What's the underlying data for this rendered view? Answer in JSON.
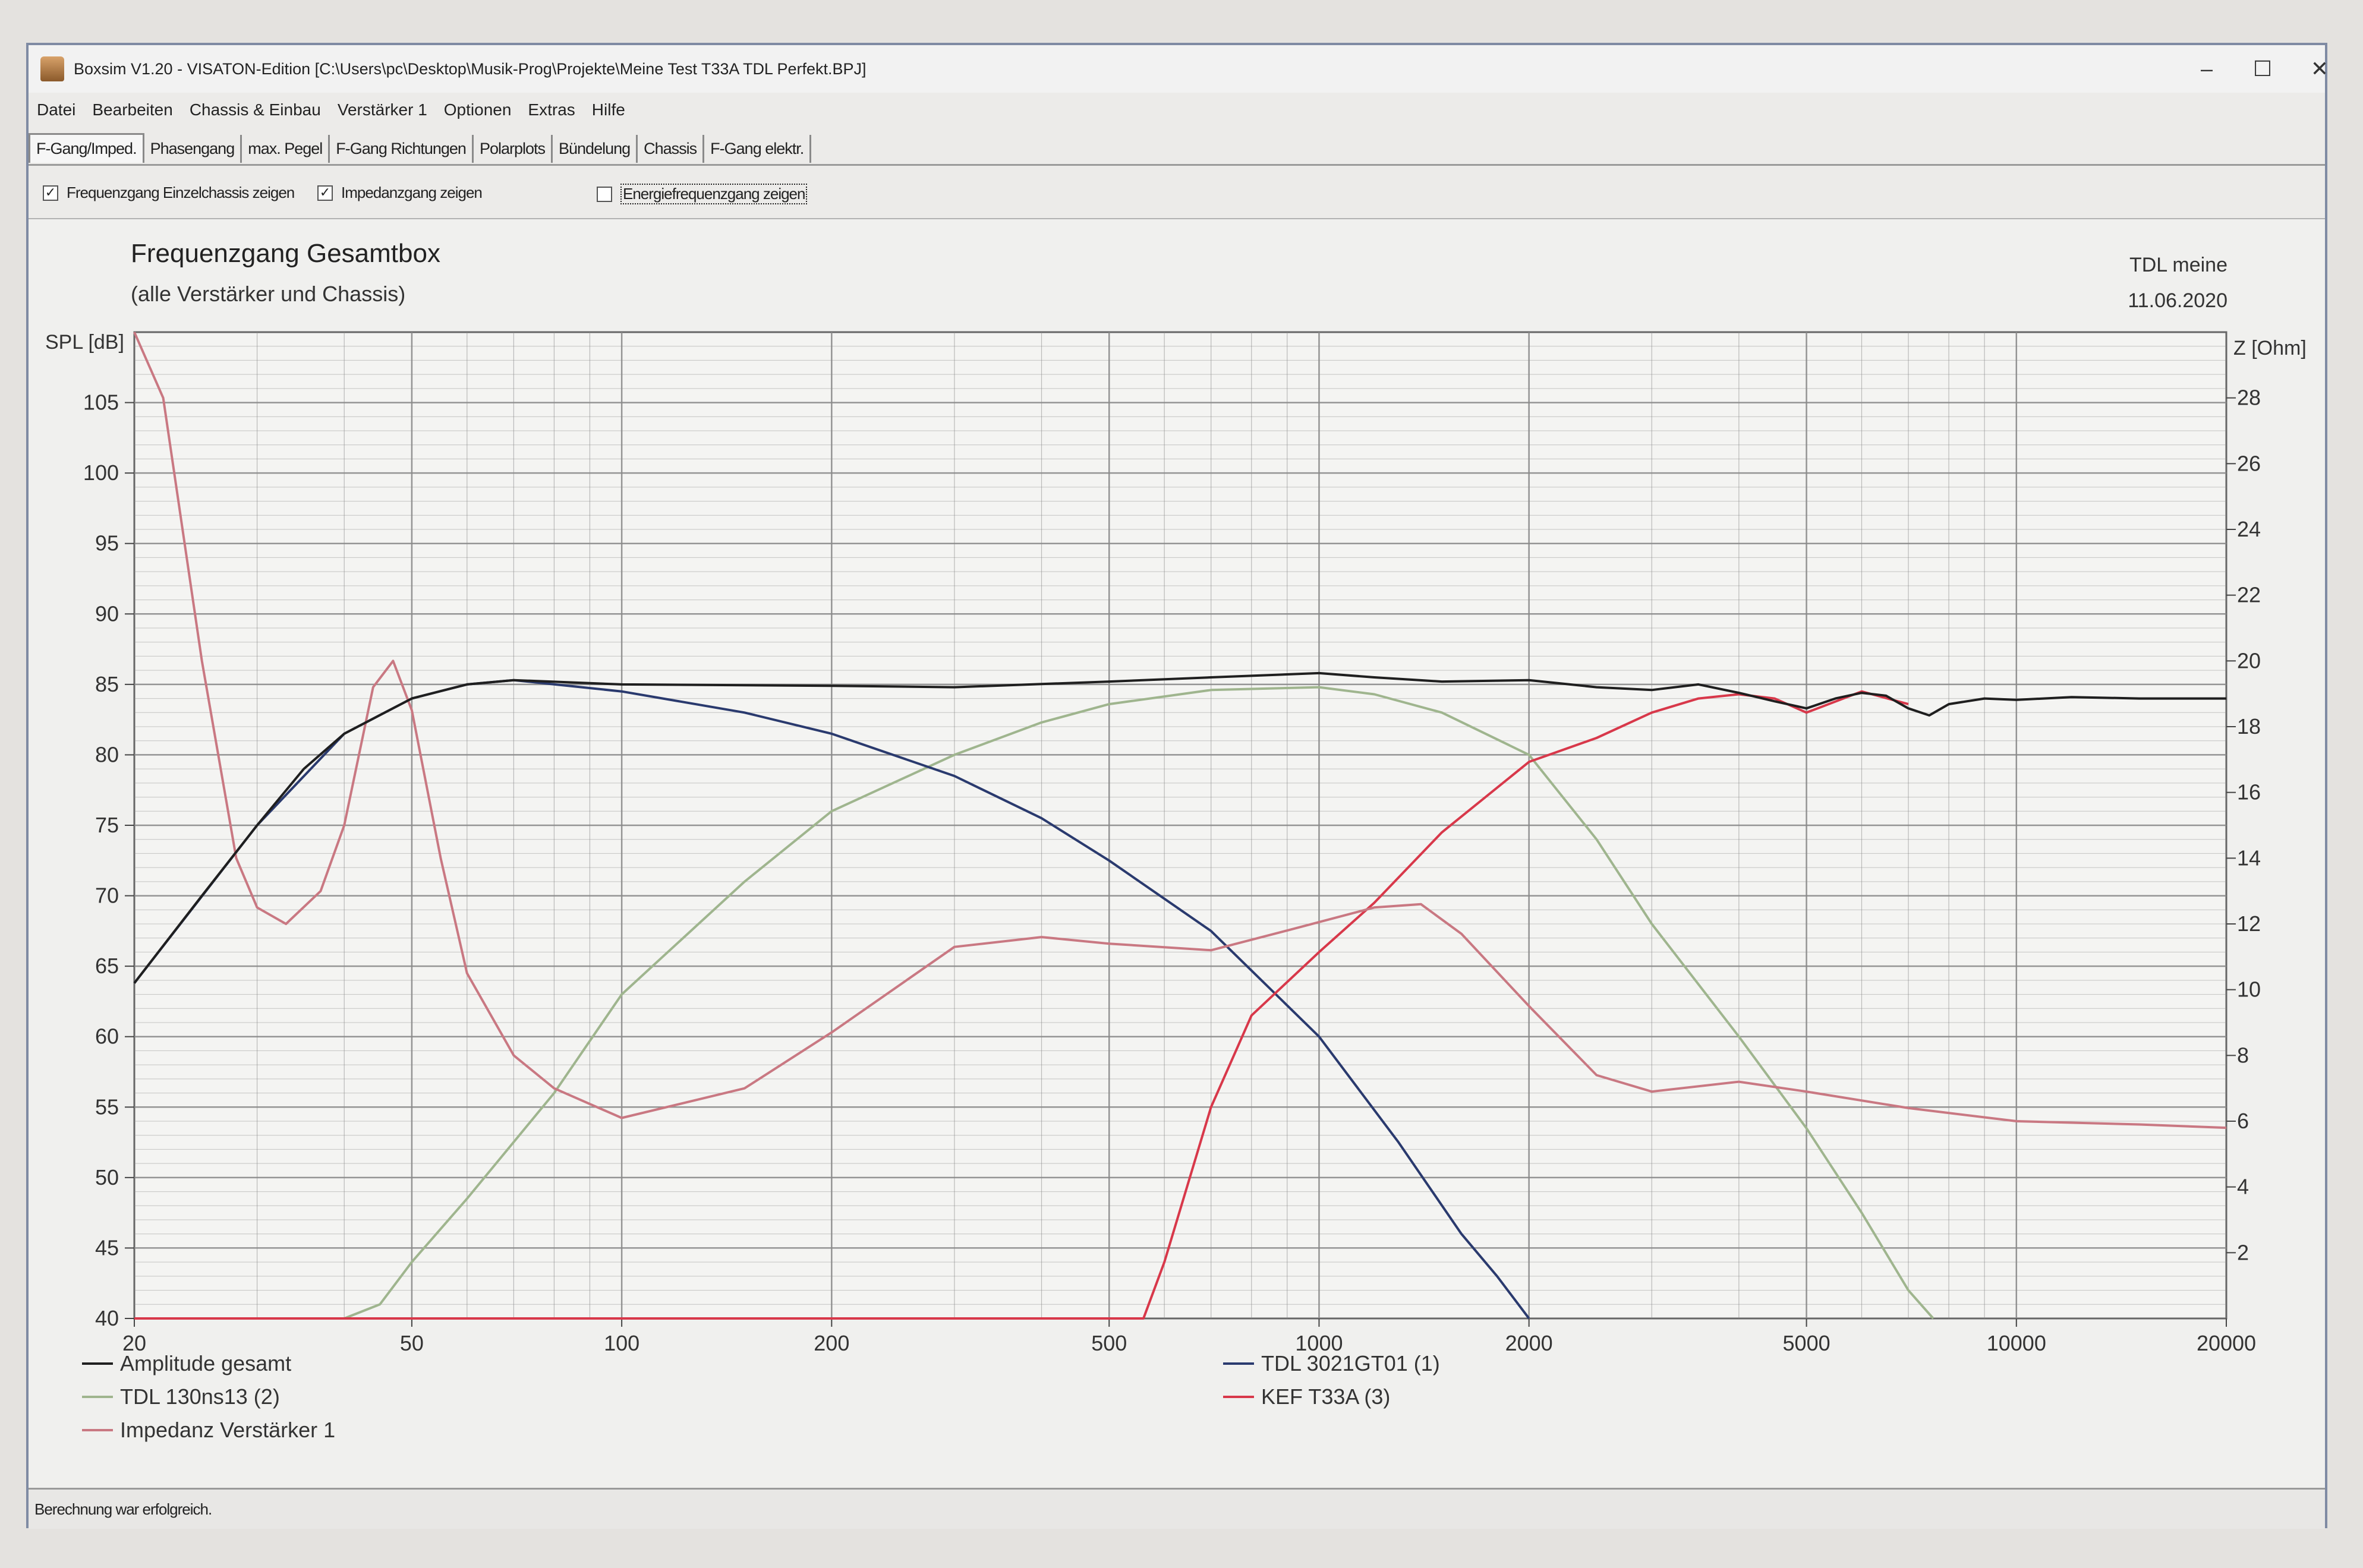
{
  "window": {
    "title": "Boxsim V1.20 - VISATON-Edition [C:\\Users\\pc\\Desktop\\Musik-Prog\\Projekte\\Meine Test T33A TDL Perfekt.BPJ]",
    "minimize_glyph": "–",
    "maximize_glyph": "☐",
    "close_glyph": "✕"
  },
  "menu": [
    "Datei",
    "Bearbeiten",
    "Chassis & Einbau",
    "Verstärker 1",
    "Optionen",
    "Extras",
    "Hilfe"
  ],
  "tabs": [
    "F-Gang/Imped.",
    "Phasengang",
    "max. Pegel",
    "F-Gang Richtungen",
    "Polarplots",
    "Bündelung",
    "Chassis",
    "F-Gang elektr."
  ],
  "active_tab": 0,
  "options": [
    {
      "label": "Frequenzgang Einzelchassis zeigen",
      "checked": true
    },
    {
      "label": "Impedanzgang zeigen",
      "checked": true
    },
    {
      "label": "Energiefrequenzgang zeigen",
      "checked": false
    }
  ],
  "status": "Berechnung war erfolgreich.",
  "colors": {
    "amplitude": "#1f1f1f",
    "tweeter": "#2a3a6e",
    "woofer": "#9fb58e",
    "kef": "#d8384a",
    "impedance": "#c97882",
    "grid": "#8a8a8a"
  },
  "chart_data": {
    "type": "line",
    "title": "Frequenzgang Gesamtbox",
    "subtitle": "(alle Verstärker und Chassis)",
    "annotation": [
      "TDL meine",
      "11.06.2020"
    ],
    "xscale": "log",
    "xlim": [
      20,
      20000
    ],
    "x_ticks": [
      20,
      50,
      100,
      200,
      500,
      1000,
      2000,
      5000,
      10000,
      20000
    ],
    "ylabel": "SPL [dB]",
    "ylim": [
      40,
      110
    ],
    "y_ticks": [
      40,
      45,
      50,
      55,
      60,
      65,
      70,
      75,
      80,
      85,
      90,
      95,
      100,
      105
    ],
    "y2label": "Z [Ohm]",
    "y2lim": [
      0,
      30
    ],
    "y2_ticks": [
      2,
      4,
      6,
      8,
      10,
      12,
      14,
      16,
      18,
      20,
      22,
      24,
      26,
      28
    ],
    "grid": true,
    "legend_position": "bottom",
    "series": [
      {
        "name": "Amplitude gesamt",
        "color_key": "amplitude",
        "axis": "left",
        "points": [
          [
            20,
            63.8
          ],
          [
            25,
            70
          ],
          [
            30,
            75
          ],
          [
            35,
            79
          ],
          [
            40,
            81.5
          ],
          [
            50,
            84
          ],
          [
            60,
            85
          ],
          [
            70,
            85.3
          ],
          [
            100,
            85
          ],
          [
            200,
            84.9
          ],
          [
            300,
            84.8
          ],
          [
            500,
            85.2
          ],
          [
            700,
            85.5
          ],
          [
            1000,
            85.8
          ],
          [
            1200,
            85.5
          ],
          [
            1500,
            85.2
          ],
          [
            2000,
            85.3
          ],
          [
            2500,
            84.8
          ],
          [
            3000,
            84.6
          ],
          [
            3500,
            85
          ],
          [
            4000,
            84.4
          ],
          [
            4500,
            83.8
          ],
          [
            5000,
            83.3
          ],
          [
            5500,
            84
          ],
          [
            6000,
            84.4
          ],
          [
            6500,
            84.2
          ],
          [
            7000,
            83.3
          ],
          [
            7500,
            82.8
          ],
          [
            8000,
            83.6
          ],
          [
            9000,
            84
          ],
          [
            10000,
            83.9
          ],
          [
            12000,
            84.1
          ],
          [
            15000,
            84
          ],
          [
            20000,
            84
          ]
        ]
      },
      {
        "name": "TDL 3021GT01 (1)",
        "color_key": "tweeter",
        "axis": "left",
        "points": [
          [
            20,
            63.8
          ],
          [
            30,
            75
          ],
          [
            40,
            81.5
          ],
          [
            50,
            84
          ],
          [
            60,
            85
          ],
          [
            70,
            85.3
          ],
          [
            100,
            84.5
          ],
          [
            150,
            83
          ],
          [
            200,
            81.5
          ],
          [
            300,
            78.5
          ],
          [
            400,
            75.5
          ],
          [
            500,
            72.5
          ],
          [
            700,
            67.5
          ],
          [
            1000,
            60
          ],
          [
            1300,
            52.5
          ],
          [
            1600,
            46
          ],
          [
            1800,
            43
          ],
          [
            2000,
            40
          ]
        ]
      },
      {
        "name": "TDL 130ns13 (2)",
        "color_key": "woofer",
        "axis": "left",
        "points": [
          [
            40,
            40
          ],
          [
            45,
            41
          ],
          [
            50,
            44
          ],
          [
            60,
            48.5
          ],
          [
            80,
            56
          ],
          [
            100,
            63
          ],
          [
            150,
            71
          ],
          [
            200,
            76
          ],
          [
            300,
            80
          ],
          [
            400,
            82.3
          ],
          [
            500,
            83.6
          ],
          [
            700,
            84.6
          ],
          [
            1000,
            84.8
          ],
          [
            1200,
            84.3
          ],
          [
            1500,
            83
          ],
          [
            2000,
            80
          ],
          [
            2500,
            74
          ],
          [
            3000,
            68
          ],
          [
            4000,
            60
          ],
          [
            5000,
            53.5
          ],
          [
            6000,
            47.5
          ],
          [
            7000,
            42
          ],
          [
            7600,
            40
          ]
        ]
      },
      {
        "name": "KEF T33A (3)",
        "color_key": "kef",
        "axis": "left",
        "points": [
          [
            20,
            40
          ],
          [
            560,
            40
          ],
          [
            600,
            44
          ],
          [
            700,
            55
          ],
          [
            800,
            61.5
          ],
          [
            1000,
            66
          ],
          [
            1200,
            69.5
          ],
          [
            1500,
            74.5
          ],
          [
            2000,
            79.5
          ],
          [
            2500,
            81.2
          ],
          [
            3000,
            83
          ],
          [
            3500,
            84
          ],
          [
            4000,
            84.3
          ],
          [
            4500,
            84
          ],
          [
            5000,
            83
          ],
          [
            6000,
            84.5
          ],
          [
            7000,
            83.6
          ]
        ]
      },
      {
        "name": "Impedanz Verstärker 1",
        "color_key": "impedance",
        "axis": "right",
        "points": [
          [
            20,
            30
          ],
          [
            22,
            28
          ],
          [
            25,
            20
          ],
          [
            28,
            14
          ],
          [
            30,
            12.5
          ],
          [
            33,
            12
          ],
          [
            37,
            13
          ],
          [
            40,
            15
          ],
          [
            44,
            19.2
          ],
          [
            47,
            20
          ],
          [
            50,
            18.5
          ],
          [
            55,
            14
          ],
          [
            60,
            10.5
          ],
          [
            70,
            8
          ],
          [
            80,
            7
          ],
          [
            100,
            6.1
          ],
          [
            150,
            7
          ],
          [
            200,
            8.7
          ],
          [
            300,
            11.3
          ],
          [
            400,
            11.6
          ],
          [
            500,
            11.4
          ],
          [
            700,
            11.2
          ],
          [
            900,
            11.8
          ],
          [
            1200,
            12.5
          ],
          [
            1400,
            12.6
          ],
          [
            1600,
            11.7
          ],
          [
            2000,
            9.5
          ],
          [
            2500,
            7.4
          ],
          [
            3000,
            6.9
          ],
          [
            4000,
            7.2
          ],
          [
            5000,
            6.9
          ],
          [
            7000,
            6.4
          ],
          [
            10000,
            6
          ],
          [
            15000,
            5.9
          ],
          [
            20000,
            5.8
          ]
        ]
      }
    ]
  }
}
